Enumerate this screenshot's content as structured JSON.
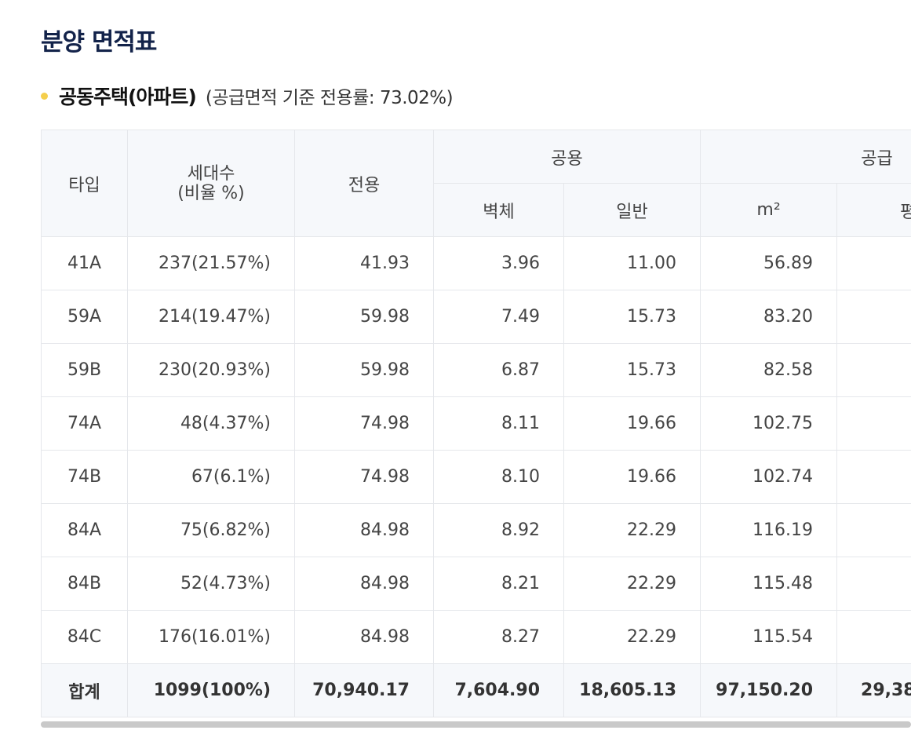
{
  "title": "분양 면적표",
  "subtitle": {
    "main": "공동주택(아파트)",
    "note": "(공급면적 기준 전용률: 73.02%)"
  },
  "table": {
    "headers": {
      "type": "타입",
      "households_line1": "세대수",
      "households_line2": "(비율 %)",
      "exclusive": "전용",
      "common": "공용",
      "common_wall": "벽체",
      "common_general": "일반",
      "supply": "공급",
      "supply_m2": "m²",
      "supply_pyeong": "평"
    },
    "rows": [
      {
        "type": "41A",
        "households": "237(21.57%)",
        "exclusive": "41.93",
        "wall": "3.96",
        "general": "11.00",
        "supply_m2": "56.89",
        "supply_pyeong": ""
      },
      {
        "type": "59A",
        "households": "214(19.47%)",
        "exclusive": "59.98",
        "wall": "7.49",
        "general": "15.73",
        "supply_m2": "83.20",
        "supply_pyeong": ""
      },
      {
        "type": "59B",
        "households": "230(20.93%)",
        "exclusive": "59.98",
        "wall": "6.87",
        "general": "15.73",
        "supply_m2": "82.58",
        "supply_pyeong": ""
      },
      {
        "type": "74A",
        "households": "48(4.37%)",
        "exclusive": "74.98",
        "wall": "8.11",
        "general": "19.66",
        "supply_m2": "102.75",
        "supply_pyeong": ""
      },
      {
        "type": "74B",
        "households": "67(6.1%)",
        "exclusive": "74.98",
        "wall": "8.10",
        "general": "19.66",
        "supply_m2": "102.74",
        "supply_pyeong": ""
      },
      {
        "type": "84A",
        "households": "75(6.82%)",
        "exclusive": "84.98",
        "wall": "8.92",
        "general": "22.29",
        "supply_m2": "116.19",
        "supply_pyeong": ""
      },
      {
        "type": "84B",
        "households": "52(4.73%)",
        "exclusive": "84.98",
        "wall": "8.21",
        "general": "22.29",
        "supply_m2": "115.48",
        "supply_pyeong": ""
      },
      {
        "type": "84C",
        "households": "176(16.01%)",
        "exclusive": "84.98",
        "wall": "8.27",
        "general": "22.29",
        "supply_m2": "115.54",
        "supply_pyeong": ""
      }
    ],
    "total": {
      "type": "합계",
      "households": "1099(100%)",
      "exclusive": "70,940.17",
      "wall": "7,604.90",
      "general": "18,605.13",
      "supply_m2": "97,150.20",
      "supply_pyeong": "29,38"
    }
  }
}
